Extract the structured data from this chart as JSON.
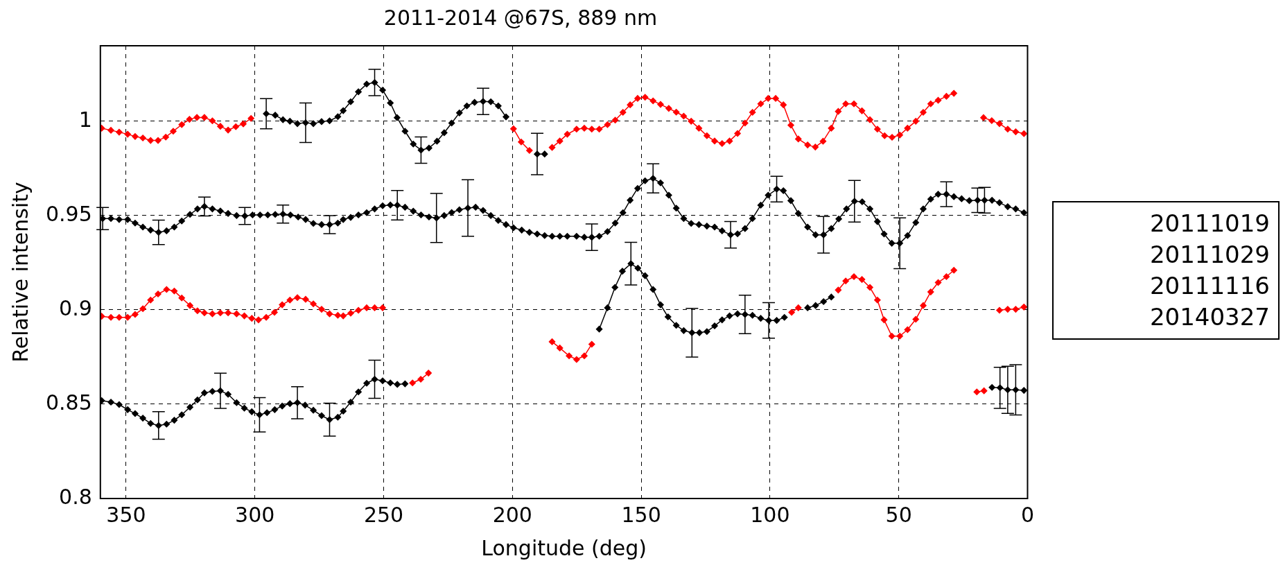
{
  "chart_data": {
    "type": "line",
    "title": "2011-2014 @67S, 889 nm",
    "xlabel": "Longitude (deg)",
    "ylabel": "Relative intensity",
    "xlim": [
      360,
      0
    ],
    "xticks": [
      350,
      300,
      250,
      200,
      150,
      100,
      50,
      0
    ],
    "ylim": [
      0.8,
      1.04
    ],
    "yticks": [
      0.8,
      0.85,
      0.9,
      0.95,
      1
    ],
    "grid": true,
    "marker": "diamond",
    "line_style": "solid",
    "annotations": [
      "20111019",
      "20111029",
      "20111116",
      "20140327"
    ],
    "series": [
      {
        "color": "#ff0000",
        "x": [
          359.5,
          355.9,
          352.7,
          349.4,
          346.5,
          343.5,
          340.5,
          337.6,
          334.6,
          331.7,
          328.4,
          325.4,
          322.5,
          319.6,
          316.5,
          313.4,
          310.4,
          307.4,
          304.5,
          301.5
        ],
        "values": [
          0.9963,
          0.9952,
          0.9942,
          0.9931,
          0.9919,
          0.9911,
          0.9898,
          0.9898,
          0.9916,
          0.9947,
          0.9982,
          1.001,
          1.002,
          1.002,
          1.0002,
          0.9973,
          0.9953,
          0.9971,
          0.9986,
          1.0015
        ]
      },
      {
        "color": "#000000",
        "x": [
          295.6,
          292.1,
          289.1,
          286.4,
          283.5,
          280.3,
          277.3,
          274.1,
          271.0,
          267.8,
          265.7,
          262.8,
          259.8,
          256.6,
          253.5,
          250.4,
          247.4,
          244.8,
          241.7,
          238.5,
          235.5,
          232.4,
          229.3,
          226.5,
          223.6,
          220.6,
          217.7,
          214.7,
          211.4,
          208.4,
          205.5,
          202.5
        ],
        "values": [
          1.004,
          1.0032,
          1.0008,
          1.0,
          0.9987,
          0.9992,
          0.9987,
          0.9998,
          1.0002,
          1.0024,
          1.0056,
          1.0103,
          1.0156,
          1.0197,
          1.0205,
          1.0165,
          1.0097,
          1.0019,
          0.9947,
          0.9879,
          0.9847,
          0.9858,
          0.9894,
          0.9939,
          0.999,
          1.0044,
          1.0081,
          1.01,
          1.0105,
          1.0103,
          1.0081,
          1.0023
        ],
        "errors": [
          0.008,
          null,
          null,
          null,
          null,
          0.0105,
          null,
          null,
          null,
          null,
          null,
          null,
          null,
          null,
          0.007,
          null,
          null,
          null,
          null,
          null,
          0.007,
          null,
          null,
          null,
          null,
          null,
          null,
          null,
          0.007,
          null,
          null,
          null
        ]
      },
      {
        "color": "#ff0000",
        "x": [
          199.6,
          196.6,
          193.4
        ],
        "values": [
          0.996,
          0.989,
          0.9845
        ]
      },
      {
        "color": "#000000",
        "x": [
          190.4,
          187.5
        ],
        "values": [
          0.9826,
          0.9826
        ],
        "errors": [
          0.011,
          null
        ]
      },
      {
        "color": "#ff0000",
        "x": [
          184.6,
          181.6,
          178.7,
          175.1,
          172.1,
          169.2,
          166.3,
          163.1,
          160.1,
          157.1,
          154.3,
          151.4,
          148.5,
          145.4,
          142.5,
          139.3,
          136.4,
          133.5,
          130.6,
          127.6,
          124.5,
          121.5,
          118.6,
          115.7,
          112.6,
          109.7,
          106.8,
          103.6,
          100.7,
          97.8,
          94.8,
          91.9,
          89.0,
          85.4,
          82.4,
          79.4,
          76.2,
          73.5,
          70.6,
          67.4,
          64.3,
          61.2,
          58.3,
          55.5,
          52.6,
          49.6,
          46.6,
          43.4,
          40.5,
          37.6,
          34.7,
          31.5,
          28.6
        ],
        "values": [
          0.9861,
          0.9895,
          0.9931,
          0.9958,
          0.9963,
          0.9958,
          0.9958,
          0.9982,
          1.0006,
          1.0047,
          1.0087,
          1.0121,
          1.0127,
          1.0108,
          1.0089,
          1.0068,
          1.0048,
          1.0027,
          1.0,
          0.9963,
          0.9923,
          0.9895,
          0.9882,
          0.9895,
          0.9935,
          0.999,
          1.0047,
          1.0092,
          1.0121,
          1.0121,
          1.0087,
          0.9979,
          0.9906,
          0.9874,
          0.9863,
          0.9894,
          0.9963,
          1.0052,
          1.0092,
          1.0092,
          1.0055,
          1.0008,
          0.9958,
          0.9923,
          0.9915,
          0.9927,
          0.9963,
          1.0,
          1.0047,
          1.0092,
          1.0111,
          1.0132,
          1.0148
        ]
      },
      {
        "color": "#ff0000",
        "x": [
          17.1,
          13.9,
          10.9,
          7.7,
          4.6,
          1.4
        ],
        "values": [
          1.0019,
          1.0003,
          0.9987,
          0.9958,
          0.9944,
          0.9934
        ]
      },
      {
        "color": "#000000",
        "x": [
          359.1,
          355.9,
          352.7,
          349.4,
          346.5,
          343.5,
          340.5,
          337.4,
          334.3,
          331.3,
          328.4,
          325.2,
          322.3,
          319.6,
          316.5,
          313.4,
          310.4,
          307.1,
          303.9,
          300.9,
          298.0,
          295.0,
          292.1,
          289.1,
          286.2,
          283.2,
          280.3,
          277.3,
          274.1,
          271.0,
          267.8,
          265.7,
          262.8,
          259.8,
          256.6,
          253.5,
          250.4,
          247.4,
          244.7,
          241.7,
          238.5,
          235.5,
          232.4,
          229.5,
          226.5,
          223.6,
          220.6,
          217.3,
          214.3,
          211.4,
          208.4,
          205.5,
          202.5,
          199.6,
          196.4,
          193.4,
          190.4,
          187.5,
          184.6,
          181.6,
          178.7,
          175.1,
          172.1,
          169.2,
          166.3,
          163.1,
          160.1,
          157.1,
          154.3,
          151.4,
          148.5,
          145.4,
          142.5,
          139.3,
          136.4,
          133.5,
          130.6,
          127.6,
          124.5,
          121.5,
          118.6,
          115.3,
          112.6,
          109.7,
          106.8,
          103.6,
          100.7,
          97.4,
          94.8,
          91.9,
          89.0,
          85.4,
          82.3,
          79.2,
          76.2,
          73.3,
          70.3,
          67.2,
          64.2,
          61.2,
          58.3,
          55.7,
          52.7,
          49.6,
          46.6,
          43.4,
          40.5,
          37.6,
          34.7,
          31.5,
          28.6,
          25.6,
          22.6,
          19.4,
          16.7,
          13.8,
          10.9,
          7.7,
          4.6,
          1.4
        ],
        "values": [
          0.9484,
          0.9484,
          0.9479,
          0.9479,
          0.946,
          0.9439,
          0.9423,
          0.9411,
          0.9419,
          0.9439,
          0.9471,
          0.9506,
          0.9535,
          0.9548,
          0.9535,
          0.9524,
          0.9511,
          0.95,
          0.9498,
          0.9503,
          0.9503,
          0.9503,
          0.9506,
          0.9508,
          0.9503,
          0.9492,
          0.9479,
          0.9458,
          0.9452,
          0.9452,
          0.946,
          0.9479,
          0.949,
          0.9503,
          0.9515,
          0.9535,
          0.9552,
          0.9556,
          0.9555,
          0.9544,
          0.9523,
          0.9503,
          0.9492,
          0.9487,
          0.95,
          0.9516,
          0.9531,
          0.954,
          0.9544,
          0.9527,
          0.95,
          0.9474,
          0.9452,
          0.9435,
          0.9423,
          0.9411,
          0.9402,
          0.9394,
          0.939,
          0.939,
          0.939,
          0.939,
          0.9385,
          0.9385,
          0.939,
          0.9415,
          0.946,
          0.9515,
          0.9581,
          0.9644,
          0.9684,
          0.9697,
          0.9673,
          0.9608,
          0.9539,
          0.9484,
          0.9458,
          0.9452,
          0.9444,
          0.9439,
          0.9419,
          0.9398,
          0.9403,
          0.9431,
          0.9484,
          0.9555,
          0.9608,
          0.964,
          0.9632,
          0.9579,
          0.9511,
          0.9439,
          0.9398,
          0.9398,
          0.9431,
          0.9482,
          0.9535,
          0.9576,
          0.9573,
          0.9535,
          0.9468,
          0.9402,
          0.9353,
          0.9353,
          0.9394,
          0.9463,
          0.9535,
          0.9587,
          0.9613,
          0.9613,
          0.96,
          0.9589,
          0.9579,
          0.9581,
          0.9581,
          0.9581,
          0.9568,
          0.9547,
          0.9535,
          0.9515
        ],
        "errors": [
          0.0059,
          null,
          null,
          null,
          null,
          null,
          null,
          0.0065,
          null,
          null,
          null,
          null,
          null,
          0.005,
          null,
          null,
          null,
          null,
          0.0045,
          null,
          null,
          null,
          null,
          0.0048,
          null,
          null,
          null,
          null,
          null,
          0.0048,
          null,
          null,
          null,
          null,
          null,
          null,
          null,
          null,
          0.0078,
          null,
          null,
          null,
          null,
          0.013,
          null,
          null,
          null,
          0.015,
          null,
          null,
          null,
          null,
          null,
          null,
          null,
          null,
          null,
          null,
          null,
          null,
          null,
          null,
          null,
          0.007,
          null,
          null,
          null,
          null,
          null,
          null,
          null,
          0.0077,
          null,
          null,
          null,
          null,
          null,
          null,
          null,
          null,
          null,
          0.007,
          null,
          null,
          null,
          null,
          null,
          0.0068,
          null,
          null,
          null,
          null,
          null,
          0.0097,
          null,
          null,
          null,
          0.011,
          null,
          null,
          null,
          null,
          null,
          0.0135,
          null,
          null,
          null,
          null,
          null,
          0.0066,
          null,
          null,
          null,
          0.0065,
          0.0068,
          null,
          null,
          null,
          null,
          null
        ]
      },
      {
        "color": "#ff0000",
        "x": [
          359.5,
          355.9,
          352.7,
          349.4,
          346.5,
          343.5,
          340.5,
          337.6,
          334.3,
          331.3,
          328.4,
          325.2,
          322.3,
          319.6,
          316.5,
          313.4,
          310.4,
          307.1,
          304.1,
          301.2,
          298.6,
          295.6,
          292.4,
          289.4,
          286.4,
          283.5,
          280.3,
          277.3,
          274.1,
          271.0,
          267.8,
          265.7,
          262.8,
          259.8,
          256.6,
          253.5,
          250.4
        ],
        "values": [
          0.8966,
          0.896,
          0.896,
          0.896,
          0.8976,
          0.9006,
          0.9052,
          0.9084,
          0.9108,
          0.91,
          0.9063,
          0.9023,
          0.8995,
          0.8984,
          0.8979,
          0.8984,
          0.8984,
          0.8979,
          0.8968,
          0.8955,
          0.8947,
          0.896,
          0.8987,
          0.9027,
          0.9052,
          0.9065,
          0.9056,
          0.9032,
          0.9003,
          0.8979,
          0.8971,
          0.8968,
          0.8982,
          0.8998,
          0.9011,
          0.9011,
          0.9011
        ]
      },
      {
        "color": "#ff0000",
        "x": [
          184.6,
          181.6,
          178.0,
          175.1,
          172.1,
          169.2
        ],
        "values": [
          0.8831,
          0.8798,
          0.8756,
          0.8737,
          0.8756,
          0.8818
        ]
      },
      {
        "color": "#000000",
        "x": [
          166.3,
          163.1,
          160.2,
          157.3,
          154.0,
          151.3,
          148.5,
          145.4,
          142.5,
          139.6,
          136.4,
          133.5,
          130.3,
          127.4,
          124.5,
          121.5,
          118.6,
          115.7,
          112.6,
          109.7,
          106.8,
          103.6,
          100.5,
          97.4,
          94.4
        ],
        "values": [
          0.8898,
          0.9011,
          0.9119,
          0.9205,
          0.9245,
          0.9221,
          0.9181,
          0.9108,
          0.9027,
          0.8963,
          0.8918,
          0.889,
          0.8879,
          0.8879,
          0.8885,
          0.8915,
          0.8947,
          0.8968,
          0.8979,
          0.8976,
          0.8971,
          0.8955,
          0.8944,
          0.8944,
          0.896
        ],
        "errors": [
          null,
          null,
          null,
          null,
          0.0113,
          null,
          null,
          null,
          null,
          null,
          null,
          null,
          0.0129,
          null,
          null,
          null,
          null,
          null,
          null,
          0.0102,
          null,
          null,
          0.0094,
          null,
          null
        ]
      },
      {
        "color": "#ff0000",
        "x": [
          91.6,
          89.0
        ],
        "values": [
          0.8987,
          0.9011
        ]
      },
      {
        "color": "#000000",
        "x": [
          85.4,
          82.3,
          79.2,
          76.2
        ],
        "values": [
          0.9011,
          0.9023,
          0.9044,
          0.9068
        ]
      },
      {
        "color": "#ff0000",
        "x": [
          73.5,
          70.6,
          67.4,
          64.3,
          61.2,
          58.3,
          55.7,
          52.7,
          49.6,
          46.6,
          43.4,
          40.5,
          37.6,
          34.7,
          31.5,
          28.6
        ],
        "values": [
          0.9105,
          0.9153,
          0.9176,
          0.9161,
          0.9119,
          0.9052,
          0.8947,
          0.8861,
          0.8861,
          0.8895,
          0.895,
          0.9023,
          0.9095,
          0.9145,
          0.9176,
          0.921
        ]
      },
      {
        "color": "#ff0000",
        "x": [
          10.9,
          7.7,
          4.6,
          1.4
        ],
        "values": [
          0.8998,
          0.9003,
          0.9003,
          0.9015
        ]
      },
      {
        "color": "#000000",
        "x": [
          359.5,
          355.9,
          352.7,
          349.4,
          346.5,
          343.5,
          340.5,
          337.4,
          334.3,
          331.3,
          328.4,
          325.2,
          322.3,
          319.6,
          316.5,
          313.4,
          310.4,
          307.1,
          304.1,
          301.2,
          298.2,
          295.3,
          292.3,
          289.4,
          286.4,
          283.5,
          280.5,
          277.3,
          274.1,
          271.0,
          267.8,
          265.7,
          262.8,
          259.8,
          256.6,
          253.5,
          250.4,
          247.4,
          244.7,
          241.7
        ],
        "values": [
          0.8519,
          0.8511,
          0.8498,
          0.8471,
          0.845,
          0.8426,
          0.8398,
          0.8387,
          0.8394,
          0.8415,
          0.8444,
          0.8484,
          0.8523,
          0.856,
          0.8568,
          0.8571,
          0.8552,
          0.8508,
          0.8479,
          0.846,
          0.8444,
          0.8455,
          0.8471,
          0.849,
          0.8503,
          0.8508,
          0.8495,
          0.8468,
          0.8439,
          0.8418,
          0.8431,
          0.8463,
          0.8511,
          0.8565,
          0.8611,
          0.8632,
          0.8624,
          0.8613,
          0.8605,
          0.8608
        ],
        "errors": [
          null,
          null,
          null,
          null,
          null,
          null,
          null,
          0.0073,
          null,
          null,
          null,
          null,
          null,
          null,
          null,
          0.0093,
          null,
          null,
          null,
          null,
          0.0091,
          null,
          null,
          null,
          null,
          0.0085,
          null,
          null,
          null,
          0.0087,
          null,
          null,
          null,
          null,
          null,
          0.0101,
          null,
          null,
          null,
          null
        ]
      },
      {
        "color": "#ff0000",
        "x": [
          238.8,
          235.6,
          232.6
        ],
        "values": [
          0.8613,
          0.8632,
          0.8665
        ]
      },
      {
        "color": "#ff0000",
        "x": [
          19.7,
          16.9
        ],
        "values": [
          0.8565,
          0.8571
        ]
      },
      {
        "color": "#000000",
        "x": [
          13.8,
          10.7,
          7.7,
          4.6,
          1.4
        ],
        "values": [
          0.8589,
          0.8587,
          0.8576,
          0.8576,
          0.8573
        ],
        "errors": [
          null,
          0.0109,
          0.0125,
          0.0133,
          null
        ]
      }
    ]
  }
}
